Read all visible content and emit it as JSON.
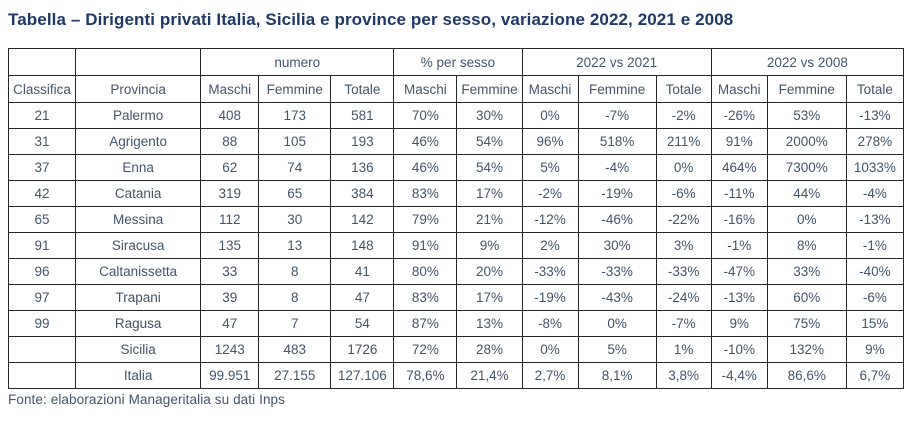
{
  "title": "Tabella – Dirigenti privati Italia, Sicilia e province per sesso, variazione 2022, 2021 e 2008",
  "footer": "Fonte: elaborazioni Manageritalia su dati Inps",
  "colors": {
    "title_text": "#1F3864",
    "table_text": "#44546A",
    "border": "#262626",
    "background": "#ffffff"
  },
  "table": {
    "groups": [
      {
        "label": "",
        "span": 1
      },
      {
        "label": "",
        "span": 1
      },
      {
        "label": "numero",
        "span": 3
      },
      {
        "label": "% per sesso",
        "span": 2
      },
      {
        "label": "2022 vs 2021",
        "span": 3
      },
      {
        "label": "2022 vs 2008",
        "span": 3
      }
    ],
    "column_headers": [
      "Classifica",
      "Provincia",
      "Maschi",
      "Femmine",
      "Totale",
      "Maschi",
      "Femmine",
      "Maschi",
      "Femmine",
      "Totale",
      "Maschi",
      "Femmine",
      "Totale"
    ],
    "rows": [
      {
        "classifica": "21",
        "provincia": "Palermo",
        "bold": false,
        "values": [
          "408",
          "173",
          "581",
          "70%",
          "30%",
          "0%",
          "-7%",
          "-2%",
          "-26%",
          "53%",
          "-13%"
        ]
      },
      {
        "classifica": "31",
        "provincia": "Agrigento",
        "bold": false,
        "values": [
          "88",
          "105",
          "193",
          "46%",
          "54%",
          "96%",
          "518%",
          "211%",
          "91%",
          "2000%",
          "278%"
        ]
      },
      {
        "classifica": "37",
        "provincia": "Enna",
        "bold": false,
        "values": [
          "62",
          "74",
          "136",
          "46%",
          "54%",
          "5%",
          "-4%",
          "0%",
          "464%",
          "7300%",
          "1033%"
        ]
      },
      {
        "classifica": "42",
        "provincia": "Catania",
        "bold": false,
        "values": [
          "319",
          "65",
          "384",
          "83%",
          "17%",
          "-2%",
          "-19%",
          "-6%",
          "-11%",
          "44%",
          "-4%"
        ]
      },
      {
        "classifica": "65",
        "provincia": "Messina",
        "bold": false,
        "values": [
          "112",
          "30",
          "142",
          "79%",
          "21%",
          "-12%",
          "-46%",
          "-22%",
          "-16%",
          "0%",
          "-13%"
        ]
      },
      {
        "classifica": "91",
        "provincia": "Siracusa",
        "bold": false,
        "values": [
          "135",
          "13",
          "148",
          "91%",
          "9%",
          "2%",
          "30%",
          "3%",
          "-1%",
          "8%",
          "-1%"
        ]
      },
      {
        "classifica": "96",
        "provincia": "Caltanissetta",
        "bold": false,
        "values": [
          "33",
          "8",
          "41",
          "80%",
          "20%",
          "-33%",
          "-33%",
          "-33%",
          "-47%",
          "33%",
          "-40%"
        ]
      },
      {
        "classifica": "97",
        "provincia": "Trapani",
        "bold": false,
        "values": [
          "39",
          "8",
          "47",
          "83%",
          "17%",
          "-19%",
          "-43%",
          "-24%",
          "-13%",
          "60%",
          "-6%"
        ]
      },
      {
        "classifica": "99",
        "provincia": "Ragusa",
        "bold": false,
        "values": [
          "47",
          "7",
          "54",
          "87%",
          "13%",
          "-8%",
          "0%",
          "-7%",
          "9%",
          "75%",
          "15%"
        ]
      },
      {
        "classifica": "",
        "provincia": "Sicilia",
        "bold": true,
        "values": [
          "1243",
          "483",
          "1726",
          "72%",
          "28%",
          "0%",
          "5%",
          "1%",
          "-10%",
          "132%",
          "9%"
        ]
      },
      {
        "classifica": "",
        "provincia": "Italia",
        "bold": true,
        "values": [
          "99.951",
          "27.155",
          "127.106",
          "78,6%",
          "21,4%",
          "2,7%",
          "8,1%",
          "3,8%",
          "-4,4%",
          "86,6%",
          "6,7%"
        ]
      }
    ]
  }
}
